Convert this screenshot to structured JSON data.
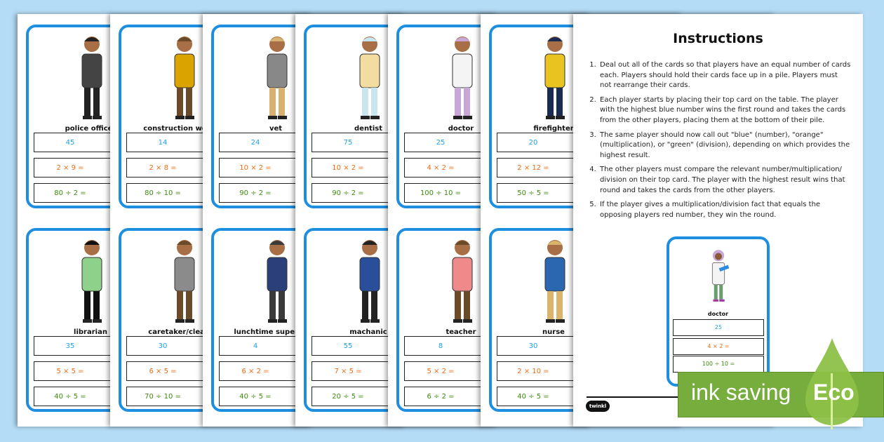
{
  "cards": [
    {
      "top": {
        "name": "police officer",
        "number": "45",
        "mult": "2 × 9 =",
        "div": "80 ÷ 2 ="
      },
      "bottom": {
        "name": "librarian",
        "number": "35",
        "mult": "5 × 5 =",
        "div": "40 ÷ 5 ="
      }
    },
    {
      "top": {
        "name": "construction worker",
        "number": "14",
        "mult": "2 × 8 =",
        "div": "80 ÷ 10 ="
      },
      "bottom": {
        "name": "caretaker/cleaner",
        "number": "30",
        "mult": "6 × 5 =",
        "div": "70 ÷ 10 ="
      }
    },
    {
      "top": {
        "name": "vet",
        "number": "24",
        "mult": "10 × 2 =",
        "div": "90 ÷ 2 ="
      },
      "bottom": {
        "name": "lunchtime supervisor",
        "number": "4",
        "mult": "6 × 2 =",
        "div": "40 ÷ 5 ="
      }
    },
    {
      "top": {
        "name": "dentist",
        "number": "75",
        "mult": "10 × 2 =",
        "div": "90 ÷ 2 ="
      },
      "bottom": {
        "name": "machanic",
        "number": "55",
        "mult": "7 × 5 =",
        "div": "20 ÷ 5 ="
      }
    },
    {
      "top": {
        "name": "doctor",
        "number": "25",
        "mult": "4 × 2 =",
        "div": "100 ÷ 10 ="
      },
      "bottom": {
        "name": "teacher",
        "number": "8",
        "mult": "5 × 2 =",
        "div": "6 ÷ 2 ="
      }
    },
    {
      "top": {
        "name": "firefighter",
        "number": "20",
        "mult": "2 × 12 =",
        "div": "50 ÷ 5 ="
      },
      "bottom": {
        "name": "nurse",
        "number": "30",
        "mult": "2 × 10 =",
        "div": "40 ÷ 5 ="
      }
    }
  ],
  "instructions": {
    "title": "Instructions",
    "steps": [
      "Deal out all of the cards so that players have an equal number of cards each. Players should hold their cards face up in a pile. Players must not rearrange their cards.",
      "Each player starts by placing their top card on the table. The player with the highest blue number wins the first round and takes the cards from the other players, placing them at the bottom of their pile.",
      "The same player should now call out \"blue\" (number), \"orange\" (multiplication), or \"green\" (division), depending on which provides the highest result.",
      "The other players must compare the relevant number/multiplication/ division on their top card. The player with the highest result wins that round and takes the cards from the other players.",
      "If the player gives a multiplication/division fact that equals the opposing players red number, they win the round."
    ],
    "example": {
      "name": "doctor",
      "number": "25",
      "mult": "4 × 2 =",
      "div": "100 ÷ 10 ="
    }
  },
  "logo": "twinkl",
  "badge": {
    "text": "ink saving",
    "eco": "Eco"
  },
  "colors": {
    "card_border": "#1e8fe0",
    "number": "#1da0e8",
    "multiplication": "#f26a10",
    "division": "#3d8a0c",
    "eco_green": "#76ad3c"
  }
}
